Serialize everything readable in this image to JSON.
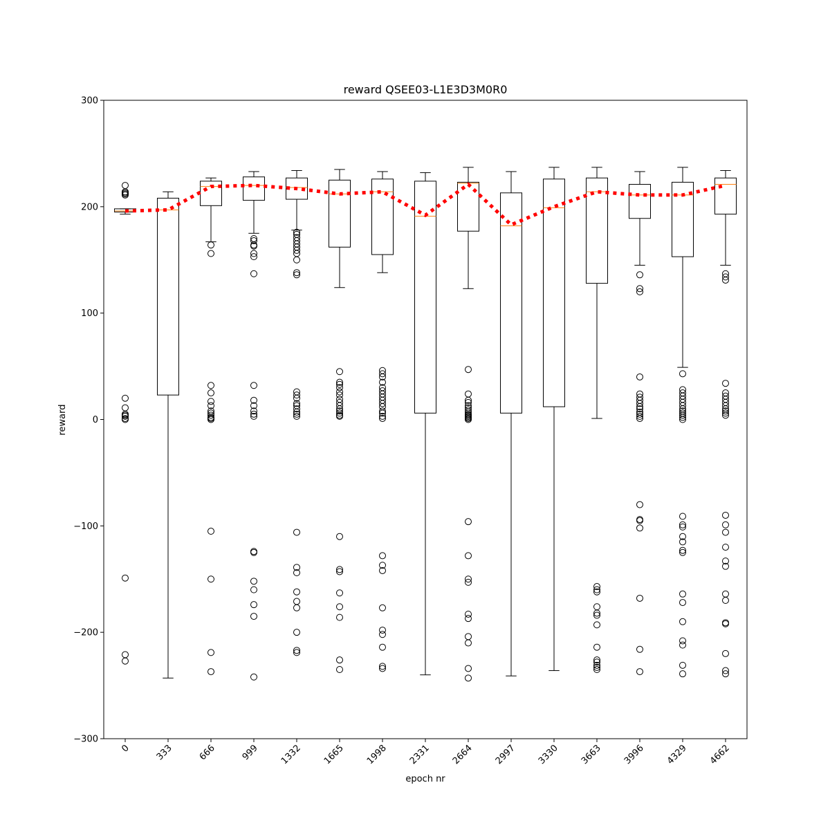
{
  "chart_data": {
    "type": "box",
    "title": "reward QSEE03-L1E3D3M0R0",
    "xlabel": "epoch nr",
    "ylabel": "reward",
    "ylim": [
      -300,
      300
    ],
    "yticks": [
      -300,
      -200,
      -100,
      0,
      100,
      200,
      300
    ],
    "ytick_labels": [
      "−300",
      "−200",
      "−100",
      "0",
      "100",
      "200",
      "300"
    ],
    "categories": [
      "0",
      "333",
      "666",
      "999",
      "1332",
      "1665",
      "1998",
      "2331",
      "2664",
      "2997",
      "3330",
      "3663",
      "3996",
      "4329",
      "4662"
    ],
    "grid": false,
    "colors": {
      "box": "#000000",
      "median": "#ff7f0e",
      "mean_line": "#ff0000"
    },
    "boxes": [
      {
        "category": "0",
        "whislo": 193,
        "q1": 195,
        "med": 196,
        "q3": 198,
        "whishi": 198,
        "fliers": [
          220,
          214,
          213,
          212,
          211,
          20,
          11,
          5,
          4,
          3,
          1,
          0,
          -149,
          -221,
          -227
        ]
      },
      {
        "category": "333",
        "whislo": -243,
        "q1": 23,
        "med": 197,
        "q3": 208,
        "whishi": 214,
        "fliers": []
      },
      {
        "category": "666",
        "whislo": 167,
        "q1": 201,
        "med": 219,
        "q3": 224,
        "whishi": 227,
        "fliers": [
          164,
          156,
          32,
          25,
          17,
          13,
          8,
          6,
          4,
          2,
          1,
          0,
          -105,
          -150,
          -219,
          -237
        ]
      },
      {
        "category": "999",
        "whislo": 175,
        "q1": 206,
        "med": 220,
        "q3": 228,
        "whishi": 233,
        "fliers": [
          170,
          168,
          164,
          163,
          156,
          153,
          137,
          32,
          18,
          13,
          8,
          5,
          3,
          -124,
          -125,
          -152,
          -160,
          -174,
          -185,
          -242
        ]
      },
      {
        "category": "1332",
        "whislo": 178,
        "q1": 207,
        "med": 218,
        "q3": 227,
        "whishi": 234,
        "fliers": [
          176,
          174,
          171,
          168,
          165,
          162,
          159,
          156,
          150,
          138,
          136,
          26,
          23,
          20,
          15,
          13,
          10,
          7,
          5,
          3,
          -106,
          -139,
          -144,
          -162,
          -171,
          -177,
          -200,
          -217,
          -219
        ]
      },
      {
        "category": "1665",
        "whislo": 124,
        "q1": 162,
        "med": 212,
        "q3": 225,
        "whishi": 235,
        "fliers": [
          45,
          35,
          33,
          30,
          26,
          23,
          19,
          16,
          13,
          10,
          8,
          6,
          4,
          3,
          -110,
          -141,
          -143,
          -163,
          -176,
          -186,
          -226,
          -235
        ]
      },
      {
        "category": "1998",
        "whislo": 138,
        "q1": 155,
        "med": 214,
        "q3": 226,
        "whishi": 233,
        "fliers": [
          46,
          43,
          40,
          35,
          30,
          27,
          24,
          21,
          18,
          15,
          12,
          8,
          6,
          3,
          1,
          -128,
          -137,
          -142,
          -177,
          -198,
          -202,
          -214,
          -232,
          -234
        ]
      },
      {
        "category": "2331",
        "whislo": -240,
        "q1": 6,
        "med": 191,
        "q3": 224,
        "whishi": 232,
        "fliers": []
      },
      {
        "category": "2664",
        "whislo": 123,
        "q1": 177,
        "med": 222,
        "q3": 223,
        "whishi": 237,
        "fliers": [
          47,
          24,
          18,
          16,
          13,
          11,
          9,
          7,
          5,
          4,
          3,
          2,
          1,
          0,
          -96,
          -128,
          -150,
          -153,
          -183,
          -187,
          -204,
          -210,
          -234,
          -243
        ]
      },
      {
        "category": "2997",
        "whislo": -241,
        "q1": 6,
        "med": 182,
        "q3": 213,
        "whishi": 233,
        "fliers": []
      },
      {
        "category": "3330",
        "whislo": -236,
        "q1": 12,
        "med": 199,
        "q3": 226,
        "whishi": 237,
        "fliers": []
      },
      {
        "category": "3663",
        "whislo": 1,
        "q1": 128,
        "med": 214,
        "q3": 227,
        "whishi": 237,
        "fliers": [
          -157,
          -160,
          -162,
          -176,
          -182,
          -184,
          -193,
          -214,
          -226,
          -228,
          -231,
          -233,
          -235
        ]
      },
      {
        "category": "3996",
        "whislo": 145,
        "q1": 189,
        "med": 211,
        "q3": 221,
        "whishi": 233,
        "fliers": [
          136,
          123,
          120,
          40,
          24,
          21,
          18,
          15,
          12,
          10,
          7,
          5,
          3,
          1,
          -80,
          -94,
          -95,
          -102,
          -168,
          -216,
          -237
        ]
      },
      {
        "category": "4329",
        "whislo": 49,
        "q1": 153,
        "med": 211,
        "q3": 223,
        "whishi": 237,
        "fliers": [
          43,
          28,
          25,
          22,
          19,
          16,
          13,
          10,
          8,
          6,
          4,
          2,
          0,
          -91,
          -99,
          -101,
          -110,
          -115,
          -123,
          -125,
          -164,
          -172,
          -190,
          -208,
          -212,
          -231,
          -239
        ]
      },
      {
        "category": "4662",
        "whislo": 145,
        "q1": 193,
        "med": 221,
        "q3": 227,
        "whishi": 234,
        "fliers": [
          137,
          134,
          131,
          34,
          25,
          22,
          19,
          16,
          13,
          10,
          8,
          6,
          4,
          -90,
          -99,
          -106,
          -120,
          -133,
          -138,
          -164,
          -170,
          -191,
          -192,
          -220,
          -236,
          -239
        ]
      }
    ],
    "mean_line": {
      "name": "",
      "style": "dotted",
      "values": [
        196,
        197,
        219,
        220,
        217,
        212,
        214,
        192,
        221,
        183,
        200,
        214,
        211,
        211,
        220
      ]
    }
  }
}
